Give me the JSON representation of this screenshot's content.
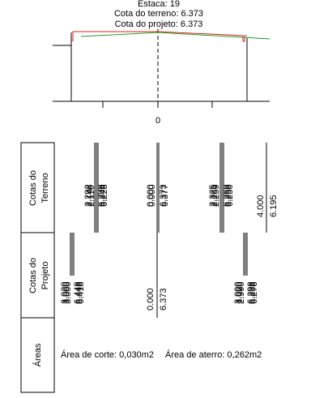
{
  "header": {
    "station": "Estaca: 19",
    "terrain_elev": "Cota do terreno: 6.373",
    "project_elev": "Cota do projeto: 6.373"
  },
  "axis": {
    "center_label": "0"
  },
  "table": {
    "row_terrain": {
      "label_line1": "Cotas do",
      "label_line2": "Terreno"
    },
    "row_project": {
      "label_line1": "Cotas do",
      "label_line2": "Projeto"
    },
    "row_areas": {
      "label": "Áreas"
    }
  },
  "values": {
    "terrain": {
      "left": {
        "offsets": [
          "2.292",
          "2.148",
          "2.110"
        ],
        "elevs": [
          "6.298",
          "6.248",
          "6.228"
        ]
      },
      "center": {
        "offsets": [
          "0.000",
          "0.000"
        ],
        "elevs": [
          "6.373",
          "6.377"
        ]
      },
      "right": {
        "offsets": [
          "2.325",
          "2.285",
          "2.259"
        ],
        "elevs": [
          "6.269",
          "6.259",
          "6.250"
        ]
      },
      "far": {
        "offset": "4.000",
        "elev": "6.195"
      }
    },
    "project": {
      "left": {
        "offsets": [
          "3.020",
          "3.000",
          "3.000"
        ],
        "elevs": [
          "6.448",
          "6.448",
          "6.418"
        ]
      },
      "center": {
        "offset": "0.000",
        "elev": "6.373"
      },
      "right": {
        "offsets": [
          "3.000",
          "3.020",
          "2.990"
        ],
        "elevs": [
          "6.298",
          "6.288",
          "6.278"
        ]
      }
    }
  },
  "areas": {
    "cut": "Área de corte: 0,030m2",
    "fill": "Área de aterro: 0,262m2"
  },
  "colors": {
    "terrain_line": "#e02020",
    "project_line": "#20a020",
    "ink": "#000000"
  }
}
